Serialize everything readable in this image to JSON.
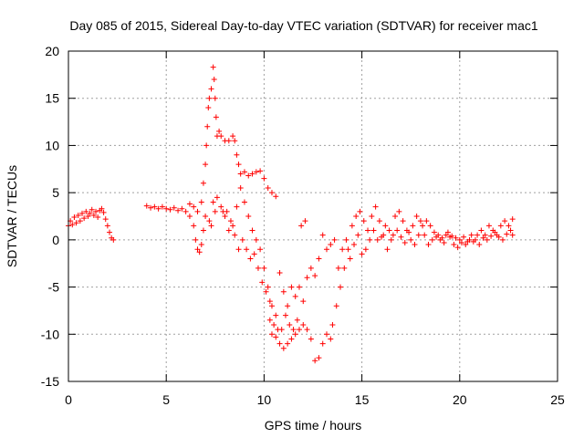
{
  "chart_data": {
    "type": "scatter",
    "title": "Day 085 of 2015, Sidereal Day-to-day VTEC variation (SDTVAR) for receiver mac1",
    "xlabel": "GPS time / hours",
    "ylabel": "SDTVAR / TECUs",
    "xlim": [
      0,
      25
    ],
    "ylim": [
      -15,
      20
    ],
    "xticks": [
      0,
      5,
      10,
      15,
      20,
      25
    ],
    "yticks": [
      -15,
      -10,
      -5,
      0,
      5,
      10,
      15,
      20
    ],
    "grid": true,
    "marker": "+",
    "color": "#ff0000",
    "series": [
      {
        "name": "SDTVAR",
        "points": [
          [
            0.0,
            1.5
          ],
          [
            0.1,
            2.0
          ],
          [
            0.2,
            1.6
          ],
          [
            0.3,
            2.4
          ],
          [
            0.4,
            1.8
          ],
          [
            0.5,
            2.6
          ],
          [
            0.6,
            2.0
          ],
          [
            0.7,
            2.8
          ],
          [
            0.8,
            2.3
          ],
          [
            0.9,
            3.0
          ],
          [
            1.0,
            2.5
          ],
          [
            1.1,
            2.8
          ],
          [
            1.2,
            3.2
          ],
          [
            1.3,
            2.6
          ],
          [
            1.4,
            3.0
          ],
          [
            1.5,
            2.4
          ],
          [
            1.6,
            3.1
          ],
          [
            1.7,
            3.3
          ],
          [
            1.8,
            2.9
          ],
          [
            1.9,
            2.2
          ],
          [
            2.0,
            1.5
          ],
          [
            2.1,
            0.8
          ],
          [
            2.2,
            0.2
          ],
          [
            2.3,
            0.0
          ],
          [
            4.0,
            3.6
          ],
          [
            4.2,
            3.4
          ],
          [
            4.4,
            3.5
          ],
          [
            4.6,
            3.3
          ],
          [
            4.8,
            3.5
          ],
          [
            5.0,
            3.3
          ],
          [
            5.2,
            3.2
          ],
          [
            5.4,
            3.4
          ],
          [
            5.6,
            3.1
          ],
          [
            5.8,
            3.3
          ],
          [
            6.0,
            3.0
          ],
          [
            6.2,
            2.5
          ],
          [
            6.4,
            1.5
          ],
          [
            6.5,
            0.0
          ],
          [
            6.6,
            -1.0
          ],
          [
            6.7,
            -1.3
          ],
          [
            6.8,
            -0.5
          ],
          [
            6.9,
            1.0
          ],
          [
            7.0,
            2.5
          ],
          [
            6.8,
            4.0
          ],
          [
            6.9,
            6.0
          ],
          [
            7.0,
            8.0
          ],
          [
            7.05,
            10.0
          ],
          [
            7.1,
            12.0
          ],
          [
            7.15,
            14.0
          ],
          [
            7.2,
            15.0
          ],
          [
            7.3,
            16.0
          ],
          [
            7.4,
            18.3
          ],
          [
            7.45,
            17.0
          ],
          [
            7.5,
            15.0
          ],
          [
            7.55,
            13.0
          ],
          [
            7.6,
            11.0
          ],
          [
            7.7,
            11.5
          ],
          [
            7.8,
            11.0
          ],
          [
            8.0,
            10.5
          ],
          [
            8.2,
            10.5
          ],
          [
            8.4,
            11.0
          ],
          [
            8.5,
            10.5
          ],
          [
            8.6,
            9.0
          ],
          [
            8.7,
            8.0
          ],
          [
            8.8,
            7.0
          ],
          [
            9.0,
            7.2
          ],
          [
            9.2,
            6.8
          ],
          [
            9.4,
            7.0
          ],
          [
            9.6,
            7.2
          ],
          [
            9.8,
            7.3
          ],
          [
            10.0,
            6.5
          ],
          [
            10.2,
            5.5
          ],
          [
            10.4,
            5.0
          ],
          [
            10.6,
            4.6
          ],
          [
            7.2,
            2.0
          ],
          [
            7.3,
            1.5
          ],
          [
            7.5,
            3.0
          ],
          [
            7.8,
            3.5
          ],
          [
            8.0,
            2.5
          ],
          [
            8.2,
            1.0
          ],
          [
            8.4,
            1.5
          ],
          [
            8.6,
            3.5
          ],
          [
            8.8,
            5.5
          ],
          [
            9.0,
            4.0
          ],
          [
            9.2,
            2.5
          ],
          [
            9.4,
            1.0
          ],
          [
            9.6,
            0.0
          ],
          [
            9.8,
            -1.0
          ],
          [
            10.0,
            -3.0
          ],
          [
            10.2,
            -5.0
          ],
          [
            10.3,
            -6.5
          ],
          [
            10.4,
            -7.0
          ],
          [
            10.3,
            -8.5
          ],
          [
            10.4,
            -10.0
          ],
          [
            10.6,
            -10.3
          ],
          [
            10.8,
            -11.0
          ],
          [
            11.0,
            -11.5
          ],
          [
            11.2,
            -11.0
          ],
          [
            11.4,
            -10.5
          ],
          [
            11.6,
            -10.0
          ],
          [
            11.8,
            -9.5
          ],
          [
            12.0,
            -9.0
          ],
          [
            12.2,
            -9.5
          ],
          [
            12.4,
            -10.5
          ],
          [
            12.6,
            -12.8
          ],
          [
            12.8,
            -12.5
          ],
          [
            13.0,
            -11.0
          ],
          [
            13.2,
            -10.0
          ],
          [
            13.4,
            -10.5
          ],
          [
            13.5,
            -9.0
          ],
          [
            13.7,
            -7.0
          ],
          [
            13.9,
            -5.0
          ],
          [
            14.1,
            -3.0
          ],
          [
            14.3,
            -1.0
          ],
          [
            14.5,
            1.5
          ],
          [
            14.7,
            2.5
          ],
          [
            14.9,
            3.0
          ],
          [
            15.1,
            2.0
          ],
          [
            15.3,
            1.0
          ],
          [
            15.5,
            2.5
          ],
          [
            15.7,
            3.5
          ],
          [
            15.9,
            2.0
          ],
          [
            16.1,
            0.5
          ],
          [
            16.3,
            -1.0
          ],
          [
            16.5,
            0.0
          ],
          [
            16.7,
            2.5
          ],
          [
            16.9,
            3.0
          ],
          [
            17.1,
            2.0
          ],
          [
            17.3,
            1.0
          ],
          [
            17.5,
            0.0
          ],
          [
            17.7,
            -0.5
          ],
          [
            17.9,
            0.5
          ],
          [
            18.1,
            1.5
          ],
          [
            18.3,
            2.0
          ],
          [
            18.5,
            1.5
          ],
          [
            18.7,
            0.8
          ],
          [
            18.9,
            0.5
          ],
          [
            19.1,
            0.2
          ],
          [
            19.3,
            0.5
          ],
          [
            19.5,
            0.3
          ],
          [
            19.7,
            -0.5
          ],
          [
            19.9,
            -0.8
          ],
          [
            20.1,
            -0.3
          ],
          [
            20.3,
            -0.5
          ],
          [
            20.5,
            0.0
          ],
          [
            20.7,
            -0.2
          ],
          [
            20.9,
            0.5
          ],
          [
            21.1,
            1.0
          ],
          [
            21.3,
            0.5
          ],
          [
            21.5,
            1.5
          ],
          [
            21.7,
            1.0
          ],
          [
            21.9,
            0.5
          ],
          [
            22.1,
            1.5
          ],
          [
            22.3,
            2.0
          ],
          [
            22.5,
            1.5
          ],
          [
            22.7,
            0.5
          ],
          [
            22.7,
            2.2
          ],
          [
            11.8,
            -5.0
          ],
          [
            12.0,
            -6.5
          ],
          [
            12.2,
            -4.0
          ],
          [
            12.4,
            -3.0
          ],
          [
            12.6,
            -3.8
          ],
          [
            12.8,
            -2.0
          ],
          [
            13.0,
            0.5
          ],
          [
            13.2,
            -1.0
          ],
          [
            13.4,
            -0.5
          ],
          [
            13.6,
            0.0
          ],
          [
            11.2,
            -7.0
          ],
          [
            11.4,
            -5.0
          ],
          [
            11.6,
            -6.0
          ],
          [
            10.8,
            -3.5
          ],
          [
            11.0,
            -5.5
          ],
          [
            10.6,
            -8.0
          ],
          [
            10.9,
            -9.5
          ],
          [
            11.1,
            -8.0
          ],
          [
            11.3,
            -9.0
          ],
          [
            11.5,
            -9.5
          ],
          [
            11.7,
            -8.5
          ],
          [
            12.1,
            2.0
          ],
          [
            11.9,
            1.5
          ],
          [
            13.8,
            -3.0
          ],
          [
            14.0,
            -1.0
          ],
          [
            14.2,
            0.0
          ],
          [
            14.4,
            -2.0
          ],
          [
            14.6,
            -0.5
          ],
          [
            14.8,
            0.5
          ],
          [
            15.0,
            -1.5
          ],
          [
            15.2,
            -1.0
          ],
          [
            15.4,
            0.0
          ],
          [
            15.6,
            1.0
          ],
          [
            15.8,
            0.0
          ],
          [
            16.0,
            0.3
          ],
          [
            16.2,
            1.5
          ],
          [
            16.4,
            1.0
          ],
          [
            16.6,
            0.5
          ],
          [
            16.8,
            1.0
          ],
          [
            17.0,
            0.3
          ],
          [
            17.2,
            -0.3
          ],
          [
            17.4,
            0.8
          ],
          [
            17.6,
            1.5
          ],
          [
            17.8,
            2.5
          ],
          [
            18.0,
            2.0
          ],
          [
            18.2,
            0.5
          ],
          [
            18.4,
            -0.5
          ],
          [
            18.6,
            0.0
          ],
          [
            18.8,
            0.3
          ],
          [
            19.0,
            0.0
          ],
          [
            19.2,
            -0.3
          ],
          [
            19.4,
            0.8
          ],
          [
            19.6,
            0.4
          ],
          [
            19.8,
            0.2
          ],
          [
            20.0,
            0.0
          ],
          [
            20.2,
            0.3
          ],
          [
            20.4,
            -0.2
          ],
          [
            20.6,
            0.5
          ],
          [
            20.8,
            0.0
          ],
          [
            21.0,
            -0.5
          ],
          [
            21.2,
            0.2
          ],
          [
            21.4,
            0.0
          ],
          [
            21.6,
            0.4
          ],
          [
            21.8,
            0.8
          ],
          [
            22.0,
            0.3
          ],
          [
            22.2,
            0.0
          ],
          [
            22.4,
            0.6
          ],
          [
            22.6,
            1.0
          ],
          [
            8.1,
            3.0
          ],
          [
            8.3,
            2.0
          ],
          [
            8.5,
            0.5
          ],
          [
            8.7,
            -1.0
          ],
          [
            8.9,
            0.0
          ],
          [
            9.1,
            -1.0
          ],
          [
            9.3,
            -2.0
          ],
          [
            9.5,
            -1.5
          ],
          [
            9.7,
            -3.0
          ],
          [
            9.9,
            -4.5
          ],
          [
            10.1,
            -5.5
          ],
          [
            10.5,
            -9.0
          ],
          [
            10.7,
            -9.5
          ],
          [
            6.6,
            3.0
          ],
          [
            6.4,
            3.5
          ],
          [
            6.2,
            3.8
          ],
          [
            7.6,
            4.5
          ],
          [
            7.4,
            4.0
          ],
          [
            7.9,
            3.0
          ]
        ]
      }
    ]
  }
}
